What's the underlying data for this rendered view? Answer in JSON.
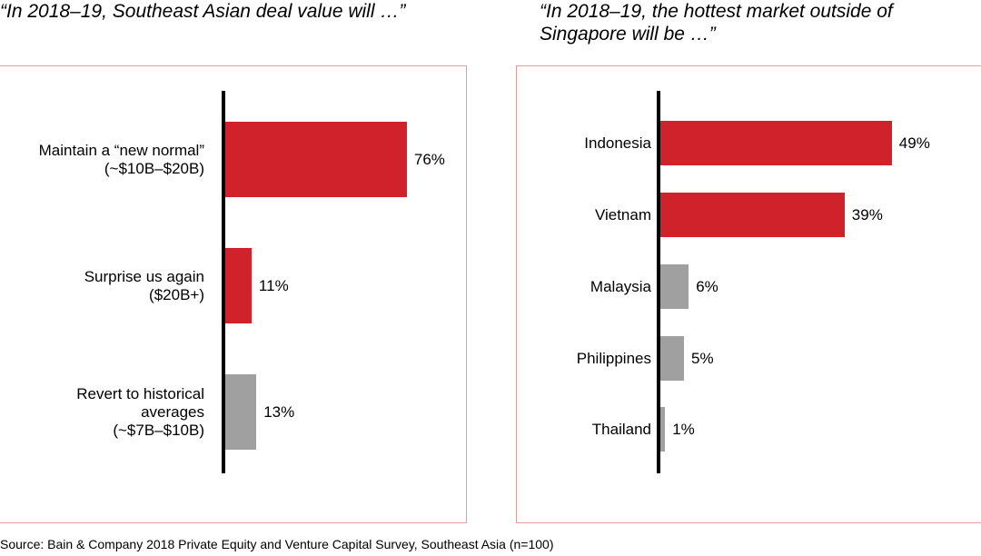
{
  "chart_data": [
    {
      "type": "bar",
      "orientation": "horizontal",
      "title": "“In 2018–19, Southeast Asian deal value will …”",
      "categories": [
        "Maintain a “new normal” (~$10B–$20B)",
        "Surprise us again ($20B+)",
        "Revert to historical averages (~$7B–$10B)"
      ],
      "category_lines": [
        [
          "Maintain a “new normal”",
          "(~$10B–$20B)"
        ],
        [
          "Surprise us again",
          "($20B+)"
        ],
        [
          "Revert to historical",
          "averages",
          "(~$7B–$10B)"
        ]
      ],
      "values": [
        76,
        11,
        13
      ],
      "labels": [
        "76%",
        "11%",
        "13%"
      ],
      "unit": "%",
      "colors": [
        "#d0222a",
        "#d0222a",
        "#a0a0a0"
      ]
    },
    {
      "type": "bar",
      "orientation": "horizontal",
      "title": "“In 2018–19, the hottest market outside of Singapore will be …”",
      "title_lines": [
        "“In 2018–19, the hottest market outside of",
        "Singapore will be …”"
      ],
      "categories": [
        "Indonesia",
        "Vietnam",
        "Malaysia",
        "Philippines",
        "Thailand"
      ],
      "category_lines": [
        [
          "Indonesia"
        ],
        [
          "Vietnam"
        ],
        [
          "Malaysia"
        ],
        [
          "Philippines"
        ],
        [
          "Thailand"
        ]
      ],
      "values": [
        49,
        39,
        6,
        5,
        1
      ],
      "labels": [
        "49%",
        "39%",
        "6%",
        "5%",
        "1%"
      ],
      "unit": "%",
      "colors": [
        "#d0222a",
        "#d0222a",
        "#a0a0a0",
        "#a0a0a0",
        "#a0a0a0"
      ]
    }
  ],
  "source": "Source: Bain & Company 2018 Private Equity and Venture Capital Survey, Southeast Asia (n=100)"
}
